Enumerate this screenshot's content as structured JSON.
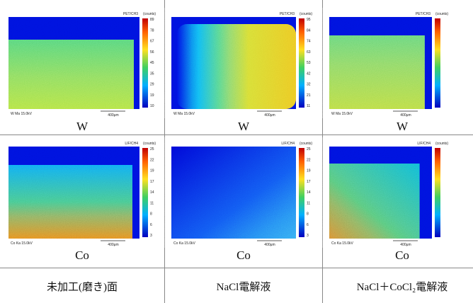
{
  "panels": [
    {
      "header": "PET/CH3",
      "unit": "(counts)",
      "ticks": [
        "89",
        "78",
        "67",
        "56",
        "45",
        "35",
        "29",
        "19",
        "10"
      ],
      "footer": "W Ma 15.0kV",
      "scale": "400μm",
      "element": "W"
    },
    {
      "header": "PET/CH3",
      "unit": "(counts)",
      "ticks": [
        "95",
        "84",
        "74",
        "63",
        "53",
        "42",
        "32",
        "21",
        "11"
      ],
      "footer": "W Ma 15.0kV",
      "scale": "400μm",
      "element": "W"
    },
    {
      "header": "PET/CH3",
      "unit": "(counts)",
      "footer": "W Ma 15.0kV",
      "scale": "400μm",
      "element": "W"
    },
    {
      "header": "LIF/CH4",
      "unit": "(counts)",
      "ticks": [
        "25",
        "22",
        "19",
        "17",
        "14",
        "11",
        "8",
        "6",
        "3"
      ],
      "footer": "Co Ka 15.0kV",
      "scale": "400μm",
      "element": "Co"
    },
    {
      "header": "LIF/CH4",
      "unit": "(counts)",
      "ticks": [
        "25",
        "22",
        "19",
        "17",
        "14",
        "11",
        "8",
        "6",
        "3"
      ],
      "footer": "Co Ka 15.0kV",
      "scale": "400μm",
      "element": "Co"
    },
    {
      "header": "LIF/CH4",
      "unit": "(counts)",
      "footer": "Co Ka 15.0kV",
      "scale": "400μm",
      "element": "Co"
    }
  ],
  "captions": [
    "未加工(磨き)面",
    "NaCl電解液",
    "NaCl＋CoCl₂電解液"
  ]
}
